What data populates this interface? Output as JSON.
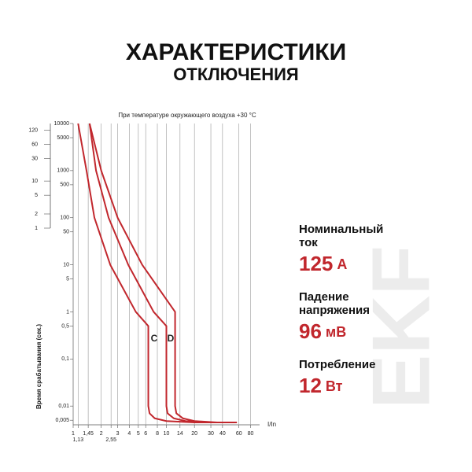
{
  "header": {
    "title": "ХАРАКТЕРИСТИКИ",
    "subtitle": "ОТКЛЮЧЕНИЯ"
  },
  "chart_data": {
    "type": "line",
    "title": "При температуре окружающего воздуха +30 °C",
    "y_label": "Время срабатывания (сек.)",
    "x_label": "I/In",
    "log_x": true,
    "log_y": true,
    "grid": true,
    "xlim": [
      1,
      100
    ],
    "ylim": [
      0.004,
      10000
    ],
    "xticks": [
      1,
      {
        "value": 1.45,
        "label": "1,45"
      },
      2,
      3,
      4,
      5,
      6,
      8,
      10,
      14,
      20,
      30,
      40,
      60,
      80
    ],
    "xticks_lower": [
      {
        "value": 1.13,
        "label": "1,13"
      },
      {
        "value": 2.55,
        "label": "2,55"
      }
    ],
    "yticks": [
      10000,
      5000,
      1000,
      500,
      100,
      50,
      10,
      5,
      1,
      {
        "value": 0.5,
        "label": "0,5"
      },
      {
        "value": 0.1,
        "label": "0,1"
      },
      {
        "value": 0.01,
        "label": "0,01"
      },
      {
        "value": 0.005,
        "label": "0,005"
      }
    ],
    "minute_ticks": [
      {
        "value": 7200,
        "label": "120"
      },
      {
        "value": 3600,
        "label": "60"
      },
      {
        "value": 1800,
        "label": "30"
      },
      {
        "value": 600,
        "label": "10"
      },
      {
        "value": 300,
        "label": "5"
      },
      {
        "value": 120,
        "label": "2"
      },
      {
        "value": 60,
        "label": "1"
      }
    ],
    "annotations": [
      "C",
      "D"
    ],
    "series": [
      {
        "color": "#c1272d",
        "x": [
          1.13,
          1.39,
          1.69,
          2.5,
          4.7,
          6.4,
          6.4,
          6.6,
          7.5,
          10,
          20,
          57
        ],
        "values": [
          10000,
          1000,
          100,
          10,
          1,
          0.5,
          0.01,
          0.007,
          0.0055,
          0.0048,
          0.0045,
          0.0045
        ]
      },
      {
        "color": "#c1272d",
        "x": [
          1.5,
          1.76,
          2.4,
          3.9,
          7.3,
          10,
          10,
          10.3,
          12,
          16,
          30,
          57
        ],
        "values": [
          10000,
          1000,
          100,
          10,
          1,
          0.5,
          0.01,
          0.007,
          0.0055,
          0.0048,
          0.0045,
          0.0045
        ]
      },
      {
        "color": "#c1272d",
        "x": [
          1.5,
          2,
          3,
          5.5,
          12.4,
          12.4,
          12.8,
          15,
          20,
          35,
          57
        ],
        "values": [
          10000,
          1000,
          100,
          10,
          1,
          0.01,
          0.007,
          0.0055,
          0.0048,
          0.0045,
          0.0045
        ]
      }
    ]
  },
  "specs": [
    {
      "label": [
        "Номинальный",
        "ток"
      ],
      "value": "125",
      "unit": "А"
    },
    {
      "label": [
        "Падение",
        "напряжения"
      ],
      "value": "96",
      "unit": "мВ"
    },
    {
      "label": [
        "Потребление"
      ],
      "value": "12",
      "unit": "Вт"
    }
  ],
  "watermark": "EKF"
}
